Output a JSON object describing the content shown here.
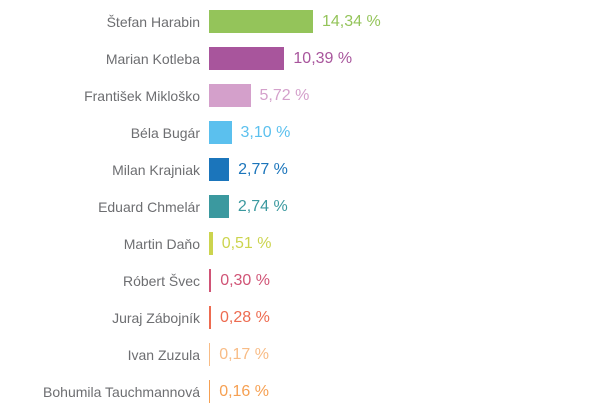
{
  "chart_data": {
    "type": "bar",
    "orientation": "horizontal",
    "title": "",
    "xlabel": "",
    "ylabel": "",
    "grid": false,
    "legend": false,
    "xlim": [
      0,
      14.34
    ],
    "decimal_separator": ",",
    "unit": "%",
    "categories": [
      "Štefan Harabin",
      "Marian Kotleba",
      "František Mikloško",
      "Béla Bugár",
      "Milan Krajniak",
      "Eduard Chmelár",
      "Martin Daňo",
      "Róbert Švec",
      "Juraj Zábojník",
      "Ivan Zuzula",
      "Bohumila Tauchmannová"
    ],
    "values": [
      14.34,
      10.39,
      5.72,
      3.1,
      2.77,
      2.74,
      0.51,
      0.3,
      0.28,
      0.17,
      0.16
    ],
    "value_labels": [
      "14,34 %",
      "10,39 %",
      "5,72 %",
      "3,10 %",
      "2,77 %",
      "2,74 %",
      "0,51 %",
      "0,30 %",
      "0,28 %",
      "0,17 %",
      "0,16 %"
    ],
    "colors": [
      "#94c45a",
      "#a8559c",
      "#d4a0cb",
      "#5bc0ee",
      "#1b75bb",
      "#3b999f",
      "#ccd44e",
      "#d05476",
      "#ed6b50",
      "#f8bc86",
      "#f6a052"
    ],
    "label_color": "#6d6e71",
    "background_color": "#ffffff",
    "value_label_position": "outside-end"
  }
}
